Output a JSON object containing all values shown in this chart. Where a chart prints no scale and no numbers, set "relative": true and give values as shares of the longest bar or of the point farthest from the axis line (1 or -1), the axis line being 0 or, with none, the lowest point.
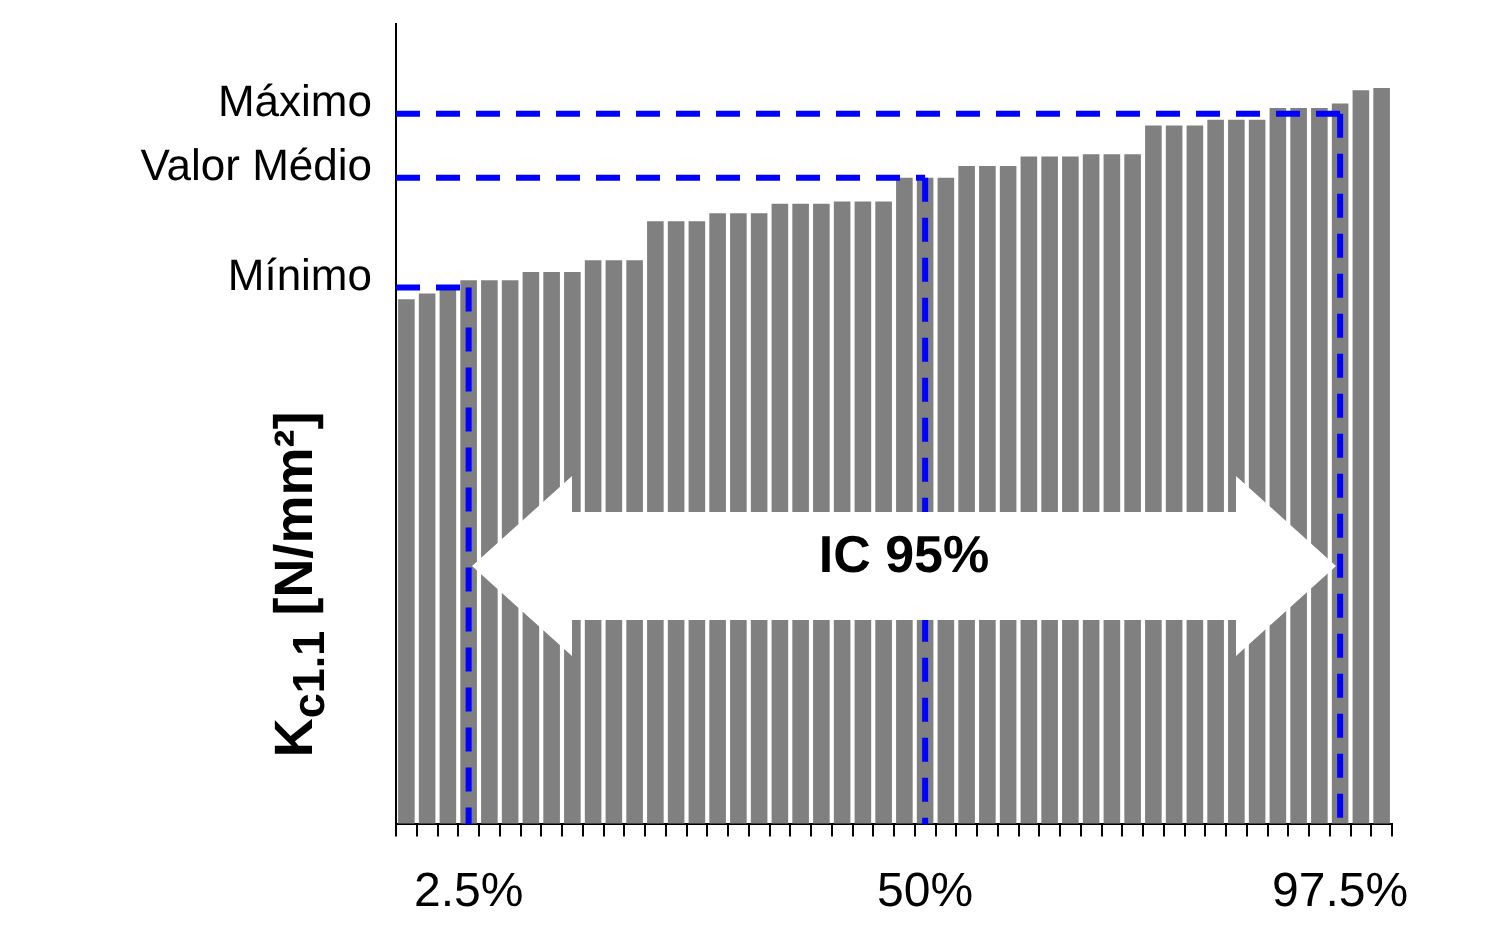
{
  "chart_data": {
    "type": "bar",
    "relative": true,
    "ylabel": "K$_{c1.1}$ [N/mm²]",
    "categories": [
      null,
      null,
      null,
      "2.5%",
      null,
      null,
      null,
      null,
      null,
      null,
      null,
      null,
      null,
      null,
      null,
      null,
      null,
      null,
      null,
      null,
      null,
      null,
      null,
      null,
      null,
      "50%",
      null,
      null,
      null,
      null,
      null,
      null,
      null,
      null,
      null,
      null,
      null,
      null,
      null,
      null,
      null,
      null,
      null,
      null,
      null,
      "97.5%",
      null,
      null
    ],
    "values": [
      0.713,
      0.721,
      0.726,
      0.739,
      0.739,
      0.739,
      0.75,
      0.75,
      0.75,
      0.766,
      0.766,
      0.766,
      0.819,
      0.819,
      0.819,
      0.83,
      0.83,
      0.83,
      0.843,
      0.843,
      0.843,
      0.846,
      0.846,
      0.846,
      0.878,
      0.878,
      0.878,
      0.894,
      0.894,
      0.894,
      0.907,
      0.907,
      0.907,
      0.91,
      0.91,
      0.91,
      0.949,
      0.949,
      0.949,
      0.957,
      0.957,
      0.957,
      0.973,
      0.973,
      0.973,
      0.979,
      0.997,
      1
    ],
    "color": "#808080",
    "ref_lines": [
      {
        "axis": "y",
        "value": 0.729,
        "label": "Mínimo",
        "color": "#0000ff",
        "line_style": "dashed"
      },
      {
        "axis": "y",
        "value": 0.878,
        "label": "Valor Médio",
        "color": "#0000ff",
        "line_style": "dashed"
      },
      {
        "axis": "y",
        "value": 0.965,
        "label": "Máximo",
        "color": "#0000ff",
        "line_style": "dashed"
      },
      {
        "axis": "x",
        "value": "2.5%",
        "color": "#0000ff",
        "line_style": "dashed"
      },
      {
        "axis": "x",
        "value": "50%",
        "color": "#0000ff",
        "line_style": "dashed"
      },
      {
        "axis": "x",
        "value": "97.5%",
        "color": "#0000ff",
        "line_style": "dashed"
      }
    ],
    "annotations": [
      "IC 95%"
    ]
  }
}
